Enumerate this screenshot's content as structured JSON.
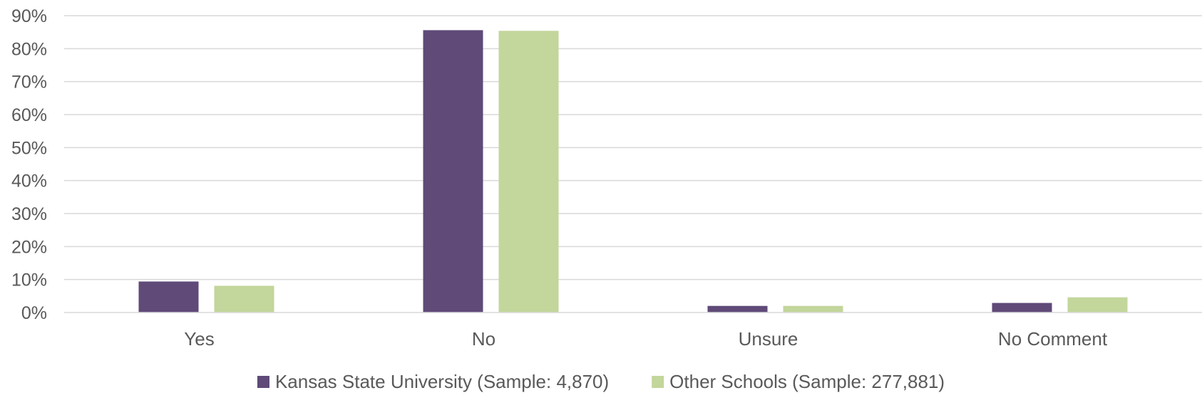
{
  "chart_data": {
    "type": "bar",
    "title": "",
    "xlabel": "",
    "ylabel": "",
    "categories": [
      "Yes",
      "No",
      "Unsure",
      "No Comment"
    ],
    "series": [
      {
        "name": "Kansas State University (Sample: 4,870)",
        "color": "#5f4a78",
        "values": [
          9.4,
          85.6,
          2.0,
          2.9
        ]
      },
      {
        "name": "Other Schools (Sample: 277,881)",
        "color": "#c3d69b",
        "values": [
          8.1,
          85.4,
          2.0,
          4.6
        ]
      }
    ],
    "ylim": [
      0,
      90
    ],
    "yticks": [
      "0%",
      "10%",
      "20%",
      "30%",
      "40%",
      "50%",
      "60%",
      "70%",
      "80%",
      "90%"
    ],
    "grid": true,
    "legend_position": "bottom"
  }
}
